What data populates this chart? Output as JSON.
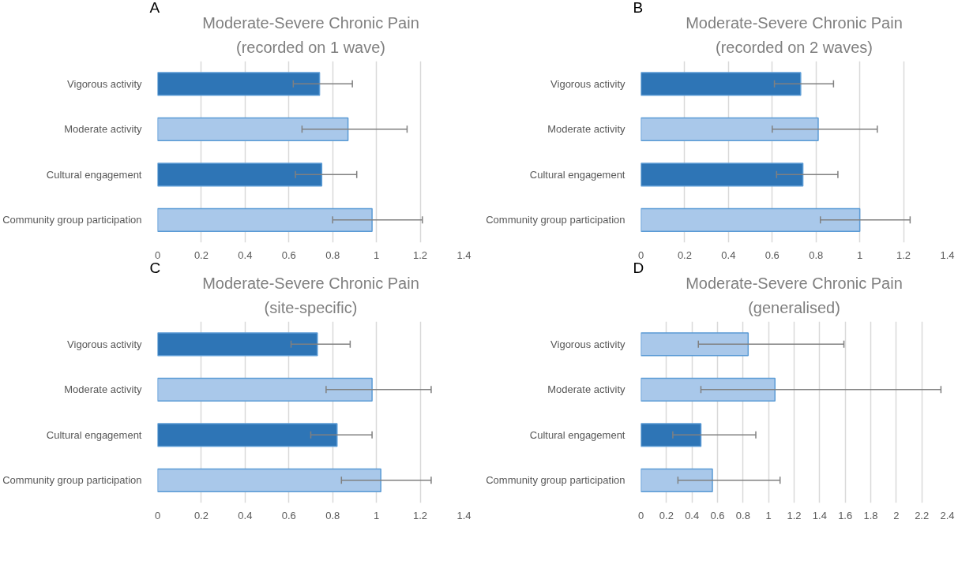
{
  "chart_data": [
    {
      "type": "bar",
      "orientation": "horizontal",
      "title": "Moderate-Severe Chronic Pain",
      "subtitle": "(recorded on 1 wave)",
      "annotations": [
        "A"
      ],
      "categories": [
        "Vigorous activity",
        "Moderate activity",
        "Cultural engagement",
        "Community group participation"
      ],
      "values": [
        0.74,
        0.87,
        0.75,
        0.98
      ],
      "errors": [
        [
          0.62,
          0.89
        ],
        [
          0.66,
          1.14
        ],
        [
          0.63,
          0.91
        ],
        [
          0.8,
          1.21
        ]
      ],
      "colors": [
        "#2e75b6",
        "#a9c8ea",
        "#2e75b6",
        "#a9c8ea"
      ],
      "xlim": [
        0,
        1.4
      ],
      "xticks": [
        0,
        0.2,
        0.4,
        0.6,
        0.8,
        1,
        1.2,
        1.4
      ],
      "grid": "x"
    },
    {
      "type": "bar",
      "orientation": "horizontal",
      "title": "Moderate-Severe Chronic Pain",
      "subtitle": "(recorded on 2 waves)",
      "annotations": [
        "B"
      ],
      "categories": [
        "Vigorous activity",
        "Moderate activity",
        "Cultural engagement",
        "Community group participation"
      ],
      "values": [
        0.73,
        0.81,
        0.74,
        1.0
      ],
      "errors": [
        [
          0.61,
          0.88
        ],
        [
          0.6,
          1.08
        ],
        [
          0.62,
          0.9
        ],
        [
          0.82,
          1.23
        ]
      ],
      "colors": [
        "#2e75b6",
        "#a9c8ea",
        "#2e75b6",
        "#a9c8ea"
      ],
      "xlim": [
        0,
        1.4
      ],
      "xticks": [
        0,
        0.2,
        0.4,
        0.6,
        0.8,
        1,
        1.2,
        1.4
      ],
      "grid": "x"
    },
    {
      "type": "bar",
      "orientation": "horizontal",
      "title": "Moderate-Severe Chronic Pain",
      "subtitle": "(site-specific)",
      "annotations": [
        "C"
      ],
      "categories": [
        "Vigorous activity",
        "Moderate activity",
        "Cultural engagement",
        "Community group participation"
      ],
      "values": [
        0.73,
        0.98,
        0.82,
        1.02
      ],
      "errors": [
        [
          0.61,
          0.88
        ],
        [
          0.77,
          1.25
        ],
        [
          0.7,
          0.98
        ],
        [
          0.84,
          1.25
        ]
      ],
      "colors": [
        "#2e75b6",
        "#a9c8ea",
        "#2e75b6",
        "#a9c8ea"
      ],
      "xlim": [
        0,
        1.4
      ],
      "xticks": [
        0,
        0.2,
        0.4,
        0.6,
        0.8,
        1,
        1.2,
        1.4
      ],
      "grid": "x"
    },
    {
      "type": "bar",
      "orientation": "horizontal",
      "title": "Moderate-Severe Chronic Pain",
      "subtitle": "(generalised)",
      "annotations": [
        "D"
      ],
      "categories": [
        "Vigorous activity",
        "Moderate activity",
        "Cultural engagement",
        "Community group participation"
      ],
      "values": [
        0.84,
        1.05,
        0.47,
        0.56
      ],
      "errors": [
        [
          0.45,
          1.59
        ],
        [
          0.47,
          2.35
        ],
        [
          0.25,
          0.9
        ],
        [
          0.29,
          1.09
        ]
      ],
      "colors": [
        "#a9c8ea",
        "#a9c8ea",
        "#2e75b6",
        "#a9c8ea"
      ],
      "xlim": [
        0,
        2.4
      ],
      "xticks": [
        0,
        0.2,
        0.4,
        0.6,
        0.8,
        1,
        1.2,
        1.4,
        1.6,
        1.8,
        2,
        2.2,
        2.4
      ],
      "grid": "x"
    }
  ]
}
